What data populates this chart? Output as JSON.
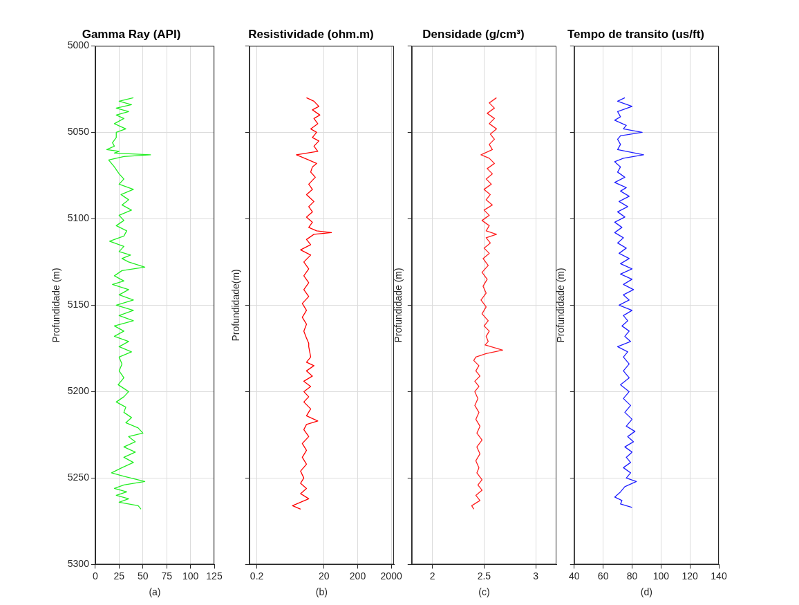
{
  "chart_data": [
    {
      "type": "line",
      "title": "Gamma Ray (API)",
      "xlabel": "(a)",
      "ylabel": "Profundidade (m)",
      "xlim": [
        0,
        125
      ],
      "xticks": [
        0,
        25,
        50,
        75,
        100,
        125
      ],
      "ylim": [
        5300,
        5000
      ],
      "yticks": [
        5000,
        5050,
        5100,
        5150,
        5200,
        5250,
        5300
      ],
      "grid": true,
      "series": [
        {
          "color": "#22ee22",
          "x": [
            40,
            25,
            38,
            22,
            35,
            22,
            30,
            20,
            32,
            22,
            22,
            18,
            20,
            12,
            25,
            20,
            58,
            30,
            14,
            20,
            25,
            30,
            25,
            40,
            27,
            35,
            28,
            38,
            25,
            30,
            22,
            33,
            30,
            15,
            30,
            25,
            37,
            28,
            35,
            52,
            28,
            20,
            30,
            18,
            35,
            25,
            40,
            22,
            40,
            25,
            40,
            20,
            30,
            20,
            35,
            25,
            38,
            25,
            28,
            25,
            30,
            24,
            35,
            30,
            22,
            32,
            30,
            38,
            32,
            45,
            50,
            35,
            42,
            30,
            42,
            30,
            40,
            28,
            17,
            30,
            52,
            30,
            20,
            33,
            22,
            35,
            25,
            45,
            48
          ],
          "values": [
            5030,
            5032,
            5034,
            5036,
            5038,
            5040,
            5042,
            5045,
            5048,
            5050,
            5053,
            5056,
            5058,
            5060,
            5061,
            5062,
            5063,
            5064,
            5066,
            5070,
            5074,
            5077,
            5080,
            5083,
            5086,
            5089,
            5092,
            5095,
            5098,
            5101,
            5104,
            5107,
            5110,
            5113,
            5116,
            5119,
            5121,
            5123,
            5125,
            5128,
            5130,
            5133,
            5136,
            5138,
            5141,
            5144,
            5147,
            5150,
            5153,
            5156,
            5159,
            5162,
            5165,
            5168,
            5171,
            5174,
            5177,
            5180,
            5184,
            5188,
            5192,
            5196,
            5200,
            5203,
            5206,
            5209,
            5212,
            5215,
            5218,
            5221,
            5224,
            5226,
            5229,
            5232,
            5235,
            5238,
            5241,
            5244,
            5247,
            5249,
            5252,
            5254,
            5256,
            5258,
            5260,
            5262,
            5264,
            5266,
            5268
          ]
        }
      ]
    },
    {
      "type": "line",
      "title": "Resistividade (ohm.m)",
      "xlabel": "(b)",
      "ylabel": "Profundidade(m)",
      "log": "x",
      "xlim": [
        0.12,
        2400
      ],
      "xticks": [
        0.2,
        20,
        200,
        2000
      ],
      "ylim": [
        5300,
        5000
      ],
      "yticks": [
        5000,
        5050,
        5100,
        5150,
        5200,
        5250,
        5300
      ],
      "grid": true,
      "tick_labels": "x",
      "series": [
        {
          "color": "#ff0000",
          "x": [
            6,
            10,
            14,
            9,
            15,
            10,
            13,
            8,
            12,
            9,
            14,
            10,
            13,
            3,
            7,
            12,
            9,
            8,
            11,
            7,
            9,
            6,
            10,
            7,
            9,
            6,
            9,
            7,
            12,
            33,
            10,
            6,
            8,
            4,
            8,
            5,
            7,
            5,
            7,
            5,
            7,
            4.5,
            6,
            4.5,
            6,
            5,
            6,
            7,
            7,
            8,
            6,
            10,
            6,
            9,
            5,
            8,
            5,
            7,
            5,
            8,
            6,
            13,
            6,
            5,
            7,
            4.5,
            6,
            4.5,
            6,
            4,
            5,
            4,
            6,
            4,
            7,
            4,
            2.3,
            4
          ],
          "values": [
            5030,
            5032,
            5035,
            5037,
            5040,
            5042,
            5045,
            5048,
            5050,
            5053,
            5055,
            5058,
            5061,
            5063,
            5066,
            5068,
            5070,
            5073,
            5076,
            5080,
            5083,
            5086,
            5090,
            5093,
            5096,
            5099,
            5102,
            5105,
            5107,
            5108,
            5109,
            5112,
            5115,
            5118,
            5121,
            5125,
            5129,
            5133,
            5137,
            5141,
            5145,
            5149,
            5153,
            5157,
            5161,
            5165,
            5169,
            5172,
            5174,
            5180,
            5183,
            5185,
            5188,
            5191,
            5194,
            5197,
            5200,
            5203,
            5206,
            5210,
            5214,
            5217,
            5219,
            5222,
            5226,
            5230,
            5234,
            5238,
            5242,
            5246,
            5250,
            5253,
            5256,
            5259,
            5262,
            5264,
            5266,
            5268
          ]
        }
      ]
    },
    {
      "type": "line",
      "title": "Densidade (g/cm³)",
      "xlabel": "(c)",
      "ylabel": "Profundidade (m)",
      "xlim": [
        1.8,
        3.2
      ],
      "xticks": [
        2,
        2.5,
        3
      ],
      "ylim": [
        5300,
        5000
      ],
      "yticks": [
        5000,
        5050,
        5100,
        5150,
        5200,
        5250,
        5300
      ],
      "grid": true,
      "tick_labels": "x",
      "series": [
        {
          "color": "#ff2020",
          "x": [
            2.62,
            2.55,
            2.6,
            2.53,
            2.6,
            2.55,
            2.62,
            2.56,
            2.6,
            2.55,
            2.58,
            2.47,
            2.55,
            2.6,
            2.53,
            2.58,
            2.52,
            2.57,
            2.5,
            2.56,
            2.52,
            2.58,
            2.5,
            2.55,
            2.48,
            2.55,
            2.52,
            2.62,
            2.52,
            2.56,
            2.5,
            2.55,
            2.49,
            2.54,
            2.48,
            2.53,
            2.49,
            2.52,
            2.47,
            2.52,
            2.48,
            2.54,
            2.5,
            2.55,
            2.52,
            2.54,
            2.51,
            2.68,
            2.52,
            2.42,
            2.4,
            2.45,
            2.42,
            2.46,
            2.41,
            2.45,
            2.41,
            2.44,
            2.41,
            2.45,
            2.42,
            2.46,
            2.43,
            2.48,
            2.43,
            2.46,
            2.42,
            2.45,
            2.43,
            2.48,
            2.44,
            2.48,
            2.42,
            2.46,
            2.38,
            2.4
          ],
          "values": [
            5030,
            5033,
            5036,
            5039,
            5042,
            5045,
            5048,
            5051,
            5054,
            5057,
            5060,
            5063,
            5065,
            5068,
            5071,
            5074,
            5077,
            5080,
            5083,
            5086,
            5089,
            5092,
            5095,
            5098,
            5101,
            5104,
            5107,
            5109,
            5111,
            5114,
            5117,
            5120,
            5123,
            5127,
            5131,
            5135,
            5139,
            5143,
            5147,
            5151,
            5155,
            5159,
            5162,
            5165,
            5168,
            5171,
            5173,
            5176,
            5178,
            5180,
            5182,
            5185,
            5188,
            5191,
            5194,
            5197,
            5200,
            5204,
            5208,
            5212,
            5216,
            5220,
            5224,
            5228,
            5232,
            5236,
            5240,
            5244,
            5247,
            5251,
            5254,
            5257,
            5260,
            5263,
            5266,
            5268
          ]
        }
      ]
    },
    {
      "type": "line",
      "title": "Tempo de transito (us/ft)",
      "xlabel": "(d)",
      "ylabel": "Profundidade (m)",
      "xlim": [
        40,
        140
      ],
      "xticks": [
        40,
        60,
        80,
        100,
        120,
        140
      ],
      "ylim": [
        5300,
        5000
      ],
      "yticks": [
        5000,
        5050,
        5100,
        5150,
        5200,
        5250,
        5300
      ],
      "grid": true,
      "tick_labels": "x",
      "series": [
        {
          "color": "#2020ff",
          "x": [
            75,
            70,
            80,
            70,
            72,
            68,
            76,
            74,
            87,
            72,
            70,
            72,
            70,
            88,
            74,
            68,
            72,
            70,
            75,
            68,
            76,
            72,
            78,
            71,
            77,
            70,
            75,
            68,
            73,
            68,
            74,
            70,
            76,
            71,
            78,
            72,
            80,
            72,
            80,
            74,
            81,
            74,
            78,
            71,
            80,
            74,
            77,
            73,
            78,
            75,
            79,
            70,
            77,
            74,
            78,
            74,
            78,
            72,
            78,
            74,
            79,
            75,
            80,
            76,
            82,
            77,
            81,
            75,
            80,
            76,
            79,
            74,
            79,
            76,
            83,
            75,
            72,
            68,
            73,
            72,
            80
          ],
          "values": [
            5030,
            5032,
            5035,
            5038,
            5041,
            5043,
            5046,
            5048,
            5050,
            5052,
            5054,
            5057,
            5060,
            5063,
            5065,
            5067,
            5070,
            5073,
            5076,
            5079,
            5082,
            5084,
            5087,
            5090,
            5093,
            5096,
            5099,
            5102,
            5105,
            5108,
            5111,
            5114,
            5117,
            5120,
            5123,
            5126,
            5129,
            5132,
            5135,
            5138,
            5141,
            5144,
            5147,
            5150,
            5153,
            5156,
            5159,
            5162,
            5165,
            5168,
            5171,
            5174,
            5177,
            5180,
            5184,
            5188,
            5192,
            5196,
            5200,
            5204,
            5208,
            5212,
            5216,
            5220,
            5223,
            5226,
            5229,
            5232,
            5235,
            5238,
            5241,
            5244,
            5247,
            5250,
            5252,
            5255,
            5258,
            5261,
            5263,
            5265,
            5267
          ]
        }
      ]
    }
  ]
}
